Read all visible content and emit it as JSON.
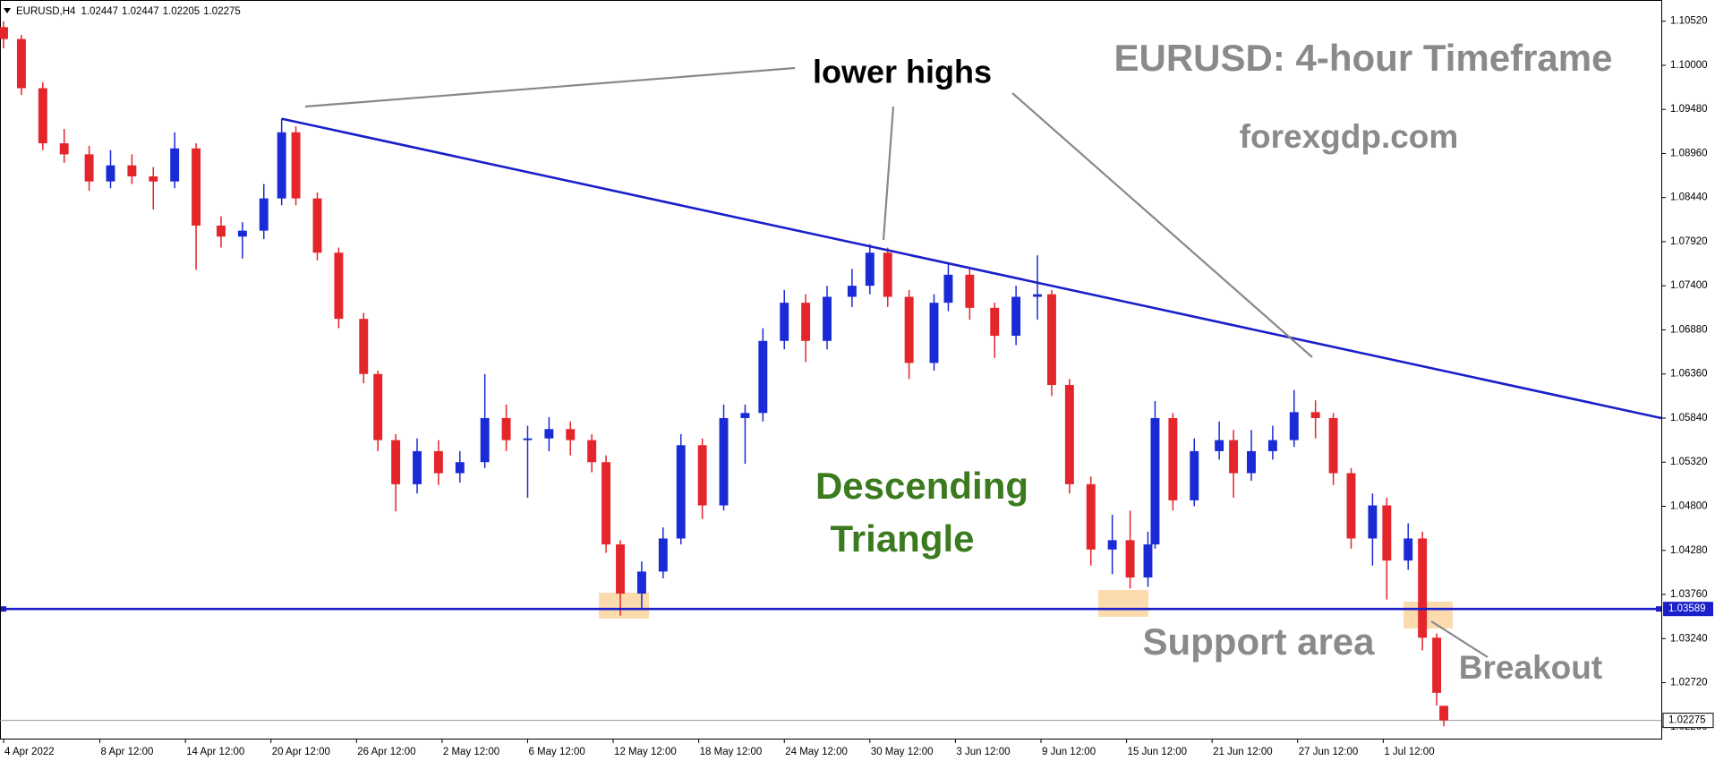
{
  "chart_data": {
    "type": "candlestick",
    "symbol": "EURUSD,H4",
    "quote": [
      1.02447,
      1.02447,
      1.02205,
      1.02275
    ],
    "annotations": [
      "lower highs",
      "EURUSD: 4-hour Timeframe",
      "forexgdp.com",
      "Descending",
      "Triangle",
      "Support area",
      "Breakout"
    ],
    "up_color": "#1a2bd6",
    "down_color": "#e4252b",
    "x": [
      0,
      5,
      11,
      17,
      24,
      30,
      36,
      42,
      48,
      54,
      61,
      67,
      73,
      78,
      82,
      88,
      94,
      101,
      105,
      110,
      116,
      122,
      128,
      135,
      141,
      147,
      153,
      159,
      165,
      169,
      173,
      179,
      185,
      190,
      196,
      202,
      208,
      213,
      219,
      225,
      231,
      238,
      243,
      248,
      254,
      261,
      265,
      271,
      278,
      284,
      290,
      294,
      299,
      305,
      311,
      316,
      321,
      323,
      328,
      334,
      341,
      345,
      350,
      356,
      362,
      368,
      373,
      378,
      384,
      388,
      394,
      398,
      402,
      404
    ],
    "open": [
      1.1045,
      1.1031,
      1.0973,
      1.0908,
      1.0895,
      1.0863,
      1.0882,
      1.0869,
      1.0863,
      1.0902,
      1.0811,
      1.0798,
      1.0805,
      1.0843,
      1.0921,
      1.0843,
      1.0779,
      1.0701,
      1.0636,
      1.0558,
      1.0506,
      1.0545,
      1.0519,
      1.0532,
      1.0584,
      1.0558,
      1.056,
      1.0571,
      1.0558,
      1.0532,
      1.0435,
      1.0377,
      1.0403,
      1.0442,
      1.0552,
      1.0481,
      1.0584,
      1.059,
      1.0675,
      1.072,
      1.0675,
      1.0727,
      1.074,
      1.0779,
      1.0727,
      1.0649,
      1.072,
      1.0753,
      1.0714,
      1.0681,
      1.0727,
      1.073,
      1.0623,
      1.0506,
      1.0429,
      1.044,
      1.0396,
      1.0435,
      1.0584,
      1.0487,
      1.0545,
      1.0558,
      1.0519,
      1.0545,
      1.0558,
      1.0591,
      1.0584,
      1.0519,
      1.0442,
      1.0481,
      1.0416,
      1.0442,
      1.0325,
      1.02447
    ],
    "high": [
      1.1052,
      1.1036,
      1.098,
      1.0925,
      1.0905,
      1.09,
      1.0895,
      1.088,
      1.0921,
      1.0908,
      1.0822,
      1.0815,
      1.086,
      1.0937,
      1.0928,
      1.085,
      1.0785,
      1.0708,
      1.064,
      1.0565,
      1.056,
      1.0558,
      1.0545,
      1.0636,
      1.06,
      1.0575,
      1.0585,
      1.058,
      1.0565,
      1.054,
      1.044,
      1.0415,
      1.0455,
      1.0565,
      1.056,
      1.06,
      1.06,
      1.069,
      1.0735,
      1.073,
      1.074,
      1.076,
      1.0789,
      1.0785,
      1.0735,
      1.073,
      1.0765,
      1.076,
      1.072,
      1.074,
      1.0776,
      1.0735,
      1.063,
      1.0515,
      1.047,
      1.0475,
      1.045,
      1.0604,
      1.059,
      1.056,
      1.058,
      1.057,
      1.057,
      1.0575,
      1.0617,
      1.0605,
      1.059,
      1.0525,
      1.0495,
      1.049,
      1.046,
      1.045,
      1.033,
      1.02447
    ],
    "low": [
      1.102,
      1.0965,
      1.09,
      1.0885,
      1.0852,
      1.0855,
      1.086,
      1.083,
      1.0855,
      1.0759,
      1.0785,
      1.0772,
      1.0795,
      1.0835,
      1.0835,
      1.077,
      1.069,
      1.0625,
      1.0545,
      1.0474,
      1.0495,
      1.0505,
      1.0508,
      1.0525,
      1.0545,
      1.049,
      1.0545,
      1.054,
      1.052,
      1.0425,
      1.0351,
      1.036,
      1.0395,
      1.0435,
      1.0465,
      1.0475,
      1.053,
      1.058,
      1.0665,
      1.065,
      1.0665,
      1.0715,
      1.073,
      1.0715,
      1.063,
      1.064,
      1.071,
      1.07,
      1.0655,
      1.067,
      1.07,
      1.061,
      1.0495,
      1.041,
      1.04,
      1.0383,
      1.0385,
      1.043,
      1.0475,
      1.048,
      1.0535,
      1.049,
      1.051,
      1.0535,
      1.055,
      1.056,
      1.0505,
      1.043,
      1.041,
      1.037,
      1.0405,
      1.031,
      1.0245,
      1.02205
    ],
    "close": [
      1.1031,
      1.0973,
      1.0908,
      1.0895,
      1.0863,
      1.0882,
      1.0869,
      1.0863,
      1.0902,
      1.0811,
      1.0798,
      1.0805,
      1.0843,
      1.0921,
      1.0843,
      1.0779,
      1.0701,
      1.0636,
      1.0558,
      1.0506,
      1.0545,
      1.0519,
      1.0532,
      1.0584,
      1.0558,
      1.056,
      1.0571,
      1.0558,
      1.0532,
      1.0435,
      1.0377,
      1.0403,
      1.0442,
      1.0552,
      1.0481,
      1.0584,
      1.059,
      1.0675,
      1.072,
      1.0675,
      1.0727,
      1.074,
      1.0779,
      1.0727,
      1.0649,
      1.072,
      1.0753,
      1.0714,
      1.0681,
      1.0727,
      1.073,
      1.0623,
      1.0506,
      1.0429,
      1.044,
      1.0396,
      1.0435,
      1.0584,
      1.0487,
      1.0545,
      1.0558,
      1.0519,
      1.0545,
      1.0558,
      1.0591,
      1.0584,
      1.0519,
      1.0442,
      1.0481,
      1.0416,
      1.0442,
      1.0325,
      1.026,
      1.02275
    ],
    "trendline": {
      "x": [
        78,
        465
      ],
      "y": [
        1.0937,
        1.0584
      ],
      "color": "#1a1fc8"
    },
    "support": 1.03589,
    "support_color": "#1a1fc8",
    "last_price": 1.02275,
    "xlim": [
      0,
      465
    ],
    "ylim": [
      1.0206,
      1.1077
    ],
    "xticks": [
      {
        "value": 0,
        "label": "4 Apr 2022"
      },
      {
        "value": 27,
        "label": "8 Apr 12:00"
      },
      {
        "value": 51,
        "label": "14 Apr 12:00"
      },
      {
        "value": 75,
        "label": "20 Apr 12:00"
      },
      {
        "value": 99,
        "label": "26 Apr 12:00"
      },
      {
        "value": 123,
        "label": "2 May 12:00"
      },
      {
        "value": 147,
        "label": "6 May 12:00"
      },
      {
        "value": 171,
        "label": "12 May 12:00"
      },
      {
        "value": 195,
        "label": "18 May 12:00"
      },
      {
        "value": 219,
        "label": "24 May 12:00"
      },
      {
        "value": 243,
        "label": "30 May 12:00"
      },
      {
        "value": 267,
        "label": "3 Jun 12:00"
      },
      {
        "value": 291,
        "label": "9 Jun 12:00"
      },
      {
        "value": 315,
        "label": "15 Jun 12:00"
      },
      {
        "value": 339,
        "label": "21 Jun 12:00"
      },
      {
        "value": 363,
        "label": "27 Jun 12:00"
      },
      {
        "value": 387,
        "label": "1 Jul 12:00"
      }
    ],
    "yticks": [
      {
        "value": 1.1052,
        "label": "1.10520"
      },
      {
        "value": 1.1,
        "label": "1.10000"
      },
      {
        "value": 1.0948,
        "label": "1.09480"
      },
      {
        "value": 1.0896,
        "label": "1.08960"
      },
      {
        "value": 1.0844,
        "label": "1.08440"
      },
      {
        "value": 1.0792,
        "label": "1.07920"
      },
      {
        "value": 1.074,
        "label": "1.07400"
      },
      {
        "value": 1.0688,
        "label": "1.06880"
      },
      {
        "value": 1.0636,
        "label": "1.06360"
      },
      {
        "value": 1.0584,
        "label": "1.05840"
      },
      {
        "value": 1.0532,
        "label": "1.05320"
      },
      {
        "value": 1.048,
        "label": "1.04800"
      },
      {
        "value": 1.0428,
        "label": "1.04280"
      },
      {
        "value": 1.0376,
        "label": "1.03760"
      },
      {
        "value": 1.0324,
        "label": "1.03240"
      },
      {
        "value": 1.0272,
        "label": "1.02720"
      },
      {
        "value": 1.022,
        "label": "1.02200"
      }
    ]
  }
}
